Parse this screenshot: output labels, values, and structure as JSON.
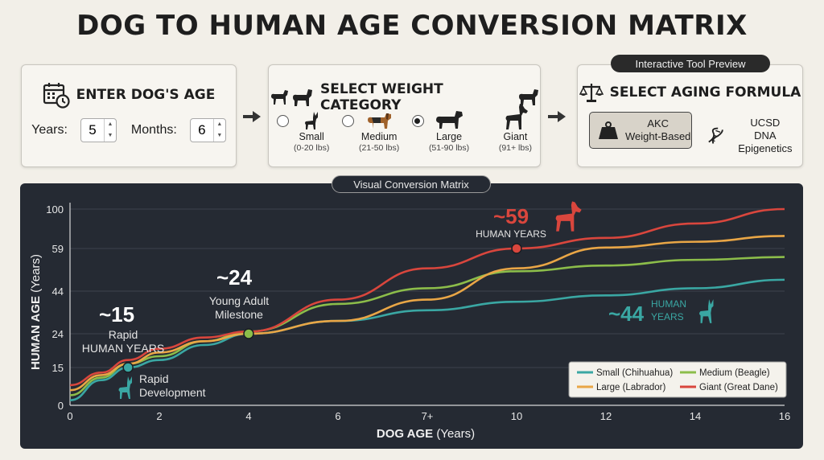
{
  "title": "DOG TO HUMAN AGE CONVERSION MATRIX",
  "age_card": {
    "heading": "ENTER DOG'S AGE",
    "years_label": "Years:",
    "years_value": "5",
    "months_label": "Months:",
    "months_value": "6",
    "icon": "calendar-clock-icon"
  },
  "weight_card": {
    "heading": "SELECT WEIGHT CATEGORY",
    "options": [
      {
        "label": "Small",
        "range": "(0-20 lbs)",
        "selected": false,
        "icon": "chihuahua-icon"
      },
      {
        "label": "Medium",
        "range": "(21-50 lbs)",
        "selected": false,
        "icon": "beagle-icon"
      },
      {
        "label": "Large",
        "range": "(51-90 lbs)",
        "selected": true,
        "icon": "labrador-icon"
      },
      {
        "label": "Giant",
        "range": "(91+ lbs)",
        "selected": false,
        "icon": "great-dane-icon"
      }
    ]
  },
  "formula_card": {
    "tag": "Interactive Tool Preview",
    "heading": "SELECT AGING FORMULA",
    "akc_line1": "AKC",
    "akc_line2": "Weight-Based",
    "ucsd_line1": "UCSD",
    "ucsd_line2": "DNA Epigenetics",
    "icon": "scales-icon"
  },
  "chart_tag": "Visual Conversion Matrix",
  "colors": {
    "small": "#3aa7a3",
    "medium": "#8cbd4a",
    "large": "#e9a646",
    "giant": "#d9463d",
    "panel": "#252a33"
  },
  "chart_data": {
    "type": "line",
    "xlabel_bold": "DOG AGE",
    "xlabel_rest": " (Years)",
    "ylabel_bold": "HUMAN AGE",
    "ylabel_rest": " (Years)",
    "x_ticks": [
      "0",
      "2",
      "4",
      "6",
      "7+",
      "10",
      "12",
      "14",
      "16"
    ],
    "y_ticks": [
      "0",
      "15",
      "24",
      "44",
      "59",
      "100"
    ],
    "xlim": [
      0,
      16
    ],
    "y_scale": "nonlinear (ticks at 0, 15, 24, 44, 59, 100)",
    "grid": true,
    "legend_position": "bottom-right",
    "series": [
      {
        "name": "Small (Chihuahua)",
        "color": "#3aa7a3",
        "points": [
          [
            0,
            2
          ],
          [
            0.7,
            10
          ],
          [
            1.3,
            15
          ],
          [
            2,
            17
          ],
          [
            3,
            21
          ],
          [
            4,
            24
          ],
          [
            6,
            30
          ],
          [
            8,
            35
          ],
          [
            10,
            39
          ],
          [
            12,
            42
          ],
          [
            14,
            45
          ],
          [
            16,
            48
          ]
        ]
      },
      {
        "name": "Medium (Beagle)",
        "color": "#8cbd4a",
        "points": [
          [
            0,
            4
          ],
          [
            0.7,
            11
          ],
          [
            1.3,
            16
          ],
          [
            2,
            18
          ],
          [
            3,
            22
          ],
          [
            4,
            25
          ],
          [
            6,
            38
          ],
          [
            8,
            45
          ],
          [
            10,
            51
          ],
          [
            12,
            53
          ],
          [
            14,
            55
          ],
          [
            16,
            56
          ]
        ]
      },
      {
        "name": "Large (Labrador)",
        "color": "#e9a646",
        "points": [
          [
            0,
            6
          ],
          [
            0.7,
            12
          ],
          [
            1.3,
            16
          ],
          [
            2,
            19
          ],
          [
            3,
            22
          ],
          [
            4,
            24
          ],
          [
            6,
            30
          ],
          [
            8,
            40
          ],
          [
            10,
            52
          ],
          [
            12,
            60
          ],
          [
            14,
            66
          ],
          [
            16,
            72
          ]
        ]
      },
      {
        "name": "Giant (Great Dane)",
        "color": "#d9463d",
        "points": [
          [
            0,
            8
          ],
          [
            0.7,
            13
          ],
          [
            1.3,
            17
          ],
          [
            2,
            20
          ],
          [
            3,
            23
          ],
          [
            4,
            25
          ],
          [
            6,
            40
          ],
          [
            8,
            52
          ],
          [
            10,
            59
          ],
          [
            12,
            70
          ],
          [
            14,
            85
          ],
          [
            16,
            100
          ]
        ]
      }
    ],
    "annotations": [
      {
        "big": "~15",
        "text1": "Rapid",
        "text2": "HUMAN YEARS"
      },
      {
        "text1": "Rapid",
        "text2": "Development"
      },
      {
        "big": "~24",
        "text1": "Young Adult",
        "text2": "Milestone"
      },
      {
        "big": "~59",
        "text1": "HUMAN YEARS"
      },
      {
        "big": "~44",
        "text1": "HUMAN",
        "text2": "YEARS"
      }
    ]
  }
}
